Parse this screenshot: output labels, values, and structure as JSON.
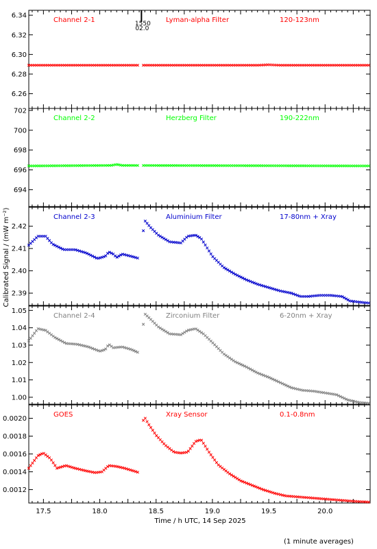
{
  "chart_data": {
    "type": "scatter",
    "xlabel": "Time / h UTC, 14 Sep 2025",
    "ylabel": "Calibrated Signal / (mW m⁻²)",
    "footnote": "(1 minute averages)",
    "xlim": [
      17.37,
      20.4
    ],
    "xticks": [
      17.5,
      17.75,
      18.0,
      18.25,
      18.5,
      18.75,
      19.0,
      19.25,
      19.5,
      19.75,
      20.0,
      20.25
    ],
    "xticklabels": [
      "17.5",
      "18.0",
      "18.5",
      "19.0",
      "19.5",
      "20.0"
    ],
    "xticklabel_values": [
      17.5,
      18.0,
      18.5,
      19.0,
      19.5,
      20.0
    ],
    "marker": {
      "x": 18.37,
      "labels": [
        "1550",
        "02.0"
      ]
    },
    "panels": [
      {
        "name": "Channel 2-1",
        "filter": "Lyman-alpha Filter",
        "band": "120-123nm",
        "color": "#ff0000",
        "ylim": [
          6.245,
          6.345
        ],
        "yticks": [
          6.26,
          6.28,
          6.3,
          6.32,
          6.34
        ],
        "yticklabels": [
          "6.26",
          "6.28",
          "6.30",
          "6.32",
          "6.34"
        ],
        "anchors": [
          [
            17.37,
            6.289
          ],
          [
            19.4,
            6.289
          ],
          [
            19.5,
            6.2895
          ],
          [
            19.6,
            6.289
          ],
          [
            20.4,
            6.289
          ]
        ]
      },
      {
        "name": "Channel 2-2",
        "filter": "Herzberg Filter",
        "band": "190-222nm",
        "color": "#00ff00",
        "ylim": [
          692.3,
          702.2
        ],
        "yticks": [
          694,
          696,
          698,
          700,
          702
        ],
        "yticklabels": [
          "694",
          "696",
          "698",
          "700",
          "702"
        ],
        "anchors": [
          [
            17.37,
            696.4
          ],
          [
            18.1,
            696.45
          ],
          [
            18.15,
            696.55
          ],
          [
            18.2,
            696.45
          ],
          [
            20.4,
            696.4
          ]
        ]
      },
      {
        "name": "Channel 2-3",
        "filter": "Aluminium Filter",
        "band": "17-80nm + Xray",
        "color": "#0000cc",
        "ylim": [
          2.3845,
          2.4285
        ],
        "yticks": [
          2.39,
          2.4,
          2.41,
          2.42
        ],
        "yticklabels": [
          "2.39",
          "2.40",
          "2.41",
          "2.42"
        ],
        "anchors": [
          [
            17.37,
            2.4115
          ],
          [
            17.45,
            2.4155
          ],
          [
            17.52,
            2.4155
          ],
          [
            17.58,
            2.412
          ],
          [
            17.68,
            2.4095
          ],
          [
            17.78,
            2.4095
          ],
          [
            17.88,
            2.408
          ],
          [
            17.98,
            2.4055
          ],
          [
            18.05,
            2.4065
          ],
          [
            18.08,
            2.4085
          ],
          [
            18.12,
            2.4075
          ],
          [
            18.15,
            2.406
          ],
          [
            18.2,
            2.4075
          ],
          [
            18.28,
            2.4065
          ],
          [
            18.35,
            2.4055
          ],
          [
            18.4,
            2.4225
          ],
          [
            18.45,
            2.4195
          ],
          [
            18.52,
            2.416
          ],
          [
            18.62,
            2.413
          ],
          [
            18.72,
            2.4125
          ],
          [
            18.78,
            2.4155
          ],
          [
            18.85,
            2.416
          ],
          [
            18.9,
            2.4145
          ],
          [
            18.95,
            2.4105
          ],
          [
            19.0,
            2.4065
          ],
          [
            19.1,
            2.4015
          ],
          [
            19.2,
            2.3985
          ],
          [
            19.3,
            2.396
          ],
          [
            19.4,
            2.394
          ],
          [
            19.5,
            2.3925
          ],
          [
            19.6,
            2.391
          ],
          [
            19.7,
            2.39
          ],
          [
            19.78,
            2.3885
          ],
          [
            19.85,
            2.3885
          ],
          [
            19.95,
            2.389
          ],
          [
            20.05,
            2.389
          ],
          [
            20.15,
            2.3885
          ],
          [
            20.22,
            2.3865
          ],
          [
            20.3,
            2.386
          ],
          [
            20.4,
            2.3855
          ]
        ]
      },
      {
        "name": "Channel 2-4",
        "filter": "Zirconium Filter",
        "band": "6-20nm + Xray",
        "color": "#808080",
        "ylim": [
          0.996,
          1.0525
        ],
        "yticks": [
          1.0,
          1.01,
          1.02,
          1.03,
          1.04,
          1.05
        ],
        "yticklabels": [
          "1.00",
          "1.01",
          "1.02",
          "1.03",
          "1.04",
          "1.05"
        ],
        "anchors": [
          [
            17.37,
            1.0325
          ],
          [
            17.45,
            1.0395
          ],
          [
            17.52,
            1.0385
          ],
          [
            17.6,
            1.0345
          ],
          [
            17.7,
            1.031
          ],
          [
            17.8,
            1.0305
          ],
          [
            17.9,
            1.029
          ],
          [
            18.0,
            1.0265
          ],
          [
            18.05,
            1.0275
          ],
          [
            18.08,
            1.0305
          ],
          [
            18.12,
            1.0285
          ],
          [
            18.2,
            1.029
          ],
          [
            18.28,
            1.0275
          ],
          [
            18.35,
            1.0255
          ],
          [
            18.4,
            1.048
          ],
          [
            18.45,
            1.045
          ],
          [
            18.52,
            1.0405
          ],
          [
            18.62,
            1.0365
          ],
          [
            18.72,
            1.036
          ],
          [
            18.78,
            1.0385
          ],
          [
            18.85,
            1.0395
          ],
          [
            18.92,
            1.0365
          ],
          [
            19.0,
            1.0315
          ],
          [
            19.1,
            1.025
          ],
          [
            19.2,
            1.0205
          ],
          [
            19.3,
            1.0175
          ],
          [
            19.4,
            1.014
          ],
          [
            19.5,
            1.0115
          ],
          [
            19.6,
            1.0085
          ],
          [
            19.7,
            1.0055
          ],
          [
            19.8,
            1.004
          ],
          [
            19.9,
            1.0035
          ],
          [
            20.0,
            1.0025
          ],
          [
            20.1,
            1.0015
          ],
          [
            20.2,
            0.9985
          ],
          [
            20.3,
            0.997
          ],
          [
            20.4,
            0.9965
          ]
        ]
      },
      {
        "name": "GOES",
        "filter": "Xray Sensor",
        "band": "0.1-0.8nm",
        "color": "#ff0000",
        "ylim": [
          0.00105,
          0.00215
        ],
        "yticks": [
          0.0012,
          0.0014,
          0.0016,
          0.0018,
          0.002
        ],
        "yticklabels": [
          "0.0012",
          "0.0014",
          "0.0016",
          "0.0018",
          "0.0020"
        ],
        "anchors": [
          [
            17.37,
            0.00144
          ],
          [
            17.45,
            0.00158
          ],
          [
            17.5,
            0.00161
          ],
          [
            17.56,
            0.00155
          ],
          [
            17.62,
            0.00144
          ],
          [
            17.7,
            0.00147
          ],
          [
            17.78,
            0.00144
          ],
          [
            17.88,
            0.00141
          ],
          [
            17.96,
            0.00139
          ],
          [
            18.02,
            0.0014
          ],
          [
            18.08,
            0.00147
          ],
          [
            18.15,
            0.00146
          ],
          [
            18.22,
            0.00144
          ],
          [
            18.3,
            0.00141
          ],
          [
            18.35,
            0.00139
          ],
          [
            18.39,
            0.00203
          ],
          [
            18.43,
            0.00194
          ],
          [
            18.5,
            0.00181
          ],
          [
            18.58,
            0.0017
          ],
          [
            18.66,
            0.00162
          ],
          [
            18.72,
            0.00161
          ],
          [
            18.78,
            0.00162
          ],
          [
            18.85,
            0.00174
          ],
          [
            18.9,
            0.00176
          ],
          [
            18.97,
            0.00162
          ],
          [
            19.05,
            0.00148
          ],
          [
            19.15,
            0.00138
          ],
          [
            19.25,
            0.0013
          ],
          [
            19.35,
            0.00125
          ],
          [
            19.45,
            0.0012
          ],
          [
            19.55,
            0.00116
          ],
          [
            19.65,
            0.00113
          ],
          [
            19.75,
            0.00112
          ],
          [
            19.85,
            0.00111
          ],
          [
            19.95,
            0.0011
          ],
          [
            20.05,
            0.00109
          ],
          [
            20.15,
            0.00108
          ],
          [
            20.25,
            0.00107
          ],
          [
            20.4,
            0.00106
          ]
        ]
      }
    ]
  }
}
